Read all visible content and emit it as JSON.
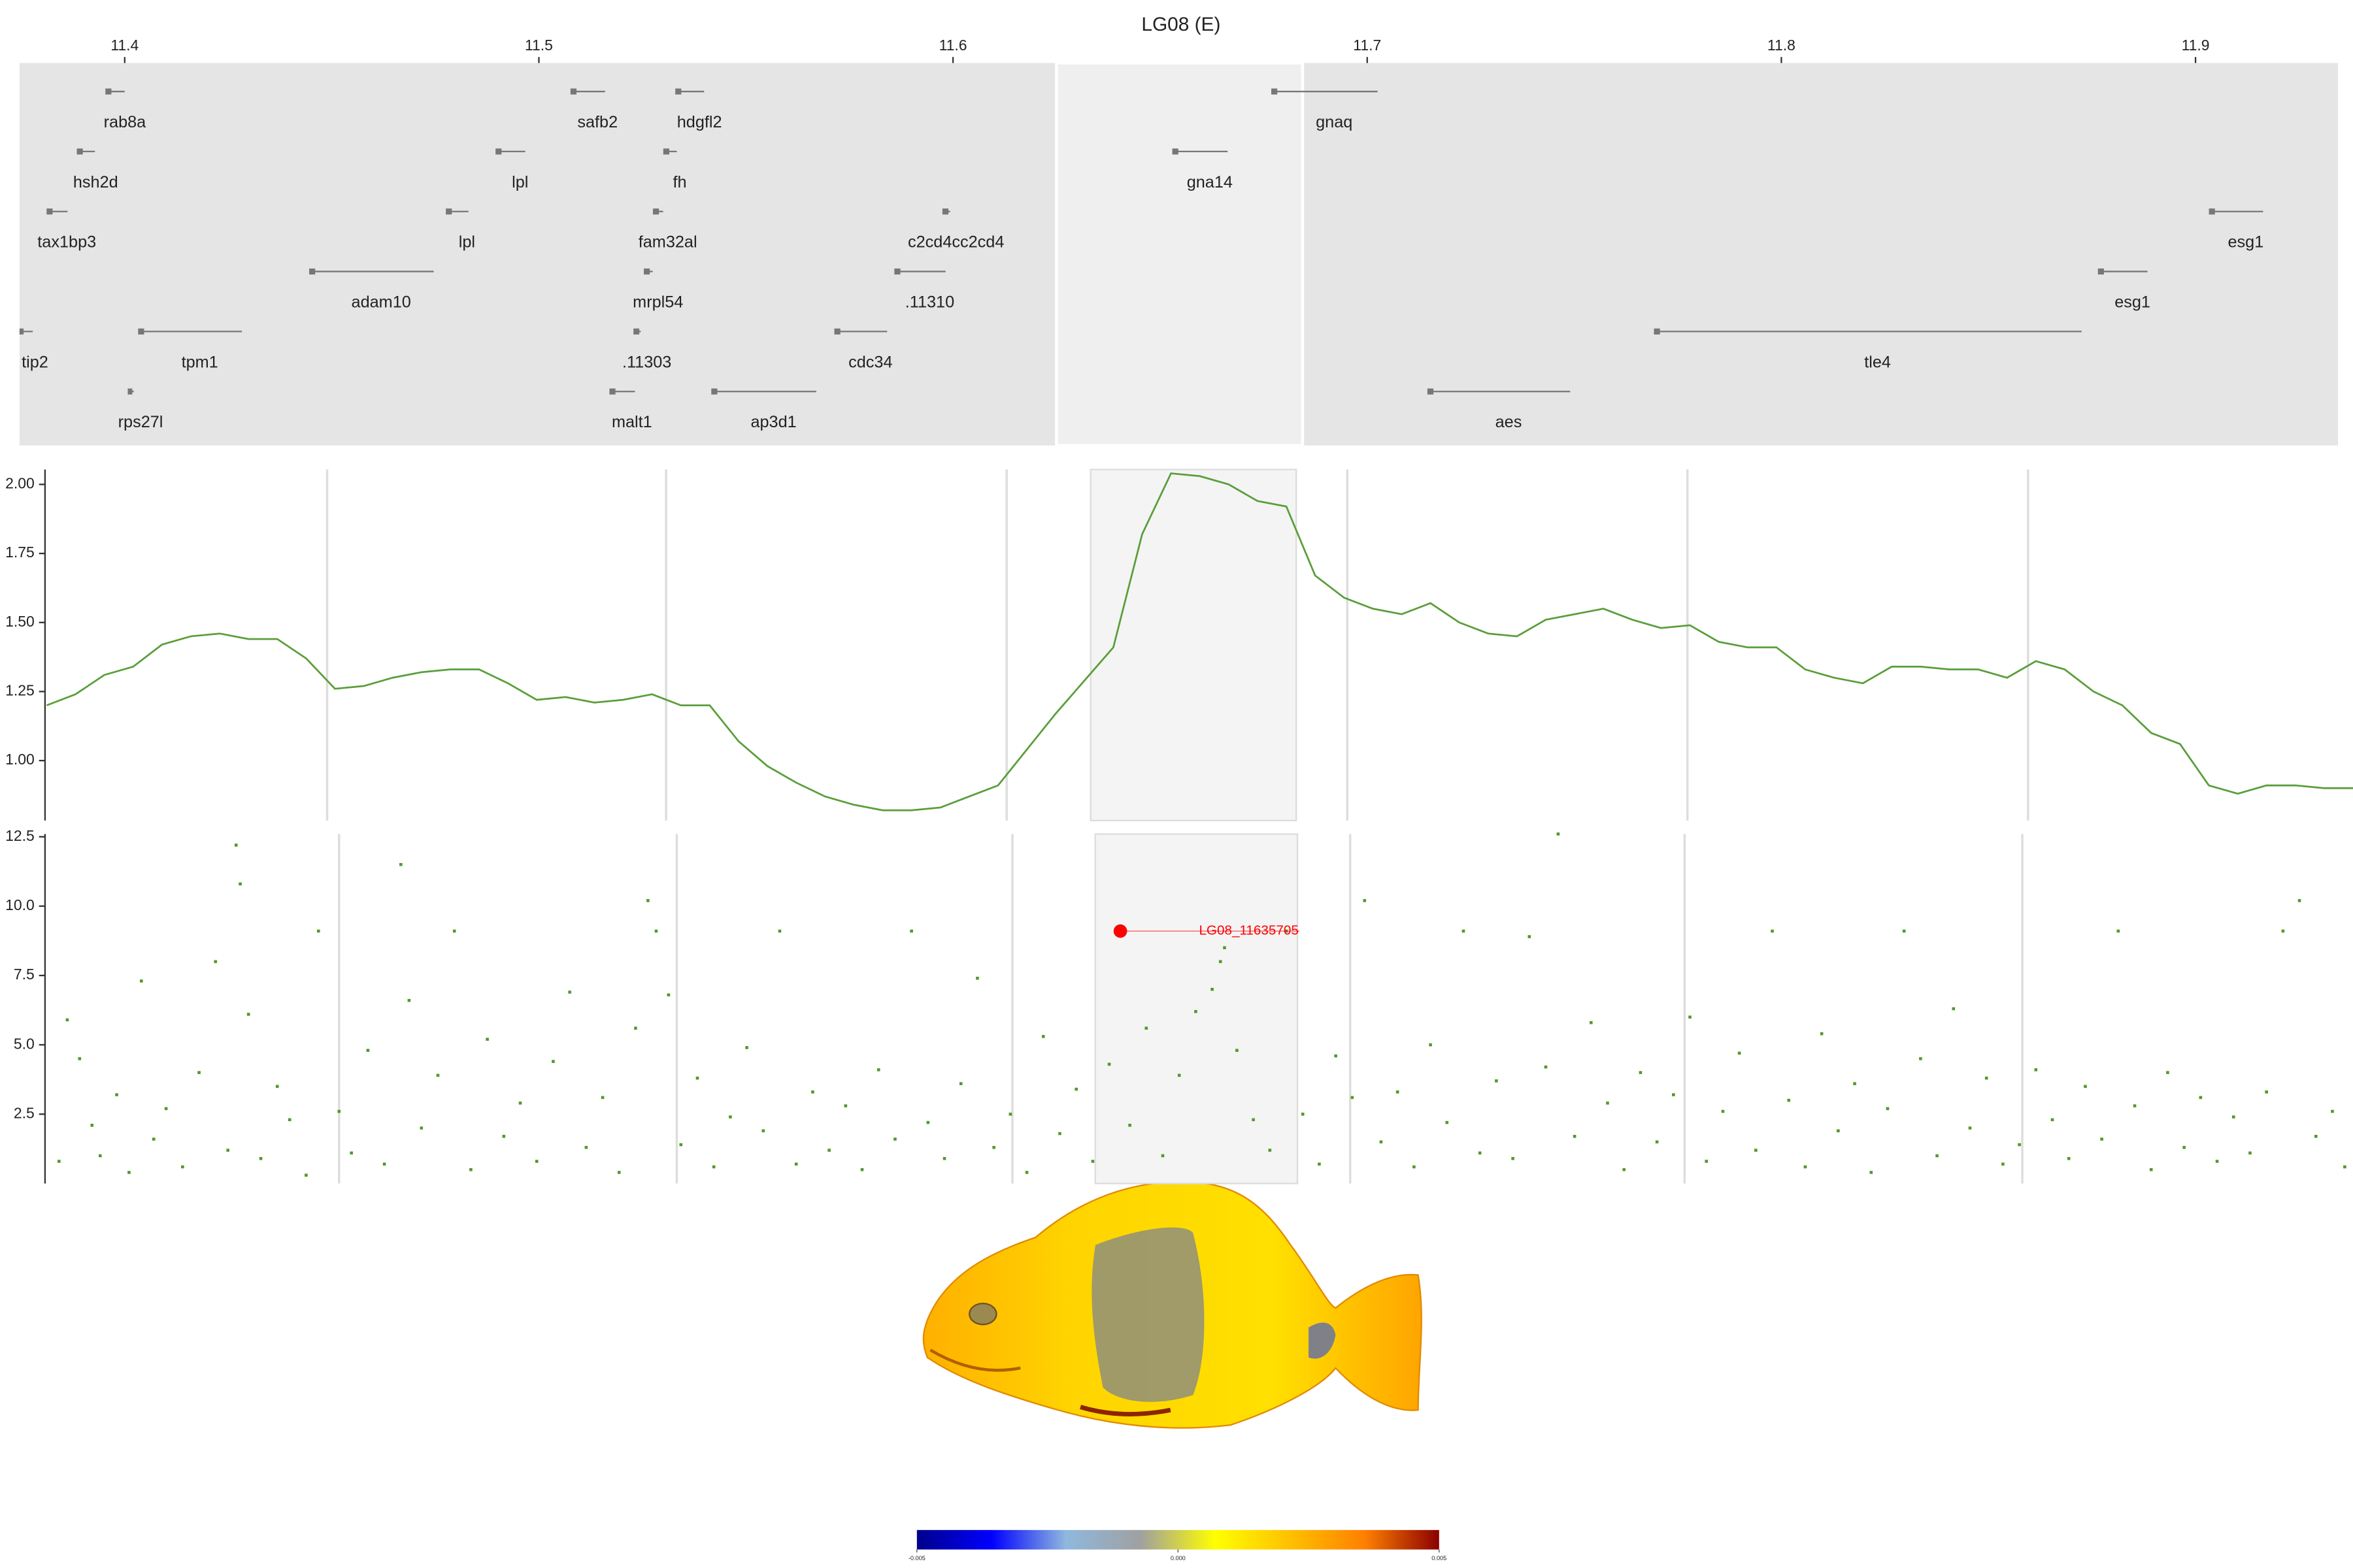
{
  "chart_data": [
    {
      "type": "gene-track",
      "title": "LG08 (E)",
      "xlim": [
        11.3746,
        11.9344
      ],
      "xticks": [
        11.4,
        11.5,
        11.6,
        11.7,
        11.8,
        11.9
      ],
      "highlight": [
        11.625,
        11.6844
      ],
      "color": "#777777",
      "rows": [
        [
          {
            "name": "rab8a",
            "start": 11.3957,
            "end": 11.4
          },
          {
            "name": "safb2",
            "start": 11.508,
            "end": 11.516
          },
          {
            "name": "hdgfl2",
            "start": 11.5333,
            "end": 11.5399
          },
          {
            "name": "gnaq",
            "start": 11.6772,
            "end": 11.7025
          }
        ],
        [
          {
            "name": "hsh2d",
            "start": 11.3888,
            "end": 11.3928
          },
          {
            "name": "lpl",
            "start": 11.4899,
            "end": 11.4967
          },
          {
            "name": "fh",
            "start": 11.5304,
            "end": 11.5333
          },
          {
            "name": "gna14",
            "start": 11.6533,
            "end": 11.6663
          }
        ],
        [
          {
            "name": "tax1bp3",
            "start": 11.3815,
            "end": 11.3862
          },
          {
            "name": "lpl",
            "start": 11.4779,
            "end": 11.483
          },
          {
            "name": "fam32al",
            "start": 11.5279,
            "end": 11.53
          },
          {
            "name": "c2cd4cc2cd4",
            "start": 11.5978,
            "end": 11.5993
          },
          {
            "name": "esg1",
            "start": 11.9036,
            "end": 11.9163
          }
        ],
        [
          {
            "name": "adam10",
            "start": 11.4449,
            "end": 11.4746
          },
          {
            "name": "mrpl54",
            "start": 11.5257,
            "end": 11.5275
          },
          {
            "name": ".11310",
            "start": 11.5862,
            "end": 11.5982
          },
          {
            "name": "esg1",
            "start": 11.8768,
            "end": 11.8884
          }
        ],
        [
          {
            "name": "tip2",
            "start": 11.3745,
            "end": 11.3778
          },
          {
            "name": "tpm1",
            "start": 11.4036,
            "end": 11.4283
          },
          {
            "name": ".11303",
            "start": 11.5232,
            "end": 11.5246
          },
          {
            "name": "cdc34",
            "start": 11.5717,
            "end": 11.5841
          },
          {
            "name": "tle4",
            "start": 11.7696,
            "end": 11.8725
          }
        ],
        [
          {
            "name": "rps27l",
            "start": 11.4011,
            "end": 11.4022
          },
          {
            "name": "malt1",
            "start": 11.5174,
            "end": 11.5232
          },
          {
            "name": "ap3d1",
            "start": 11.542,
            "end": 11.567
          },
          {
            "name": "aes",
            "start": 11.7149,
            "end": 11.749
          }
        ]
      ]
    },
    {
      "type": "line",
      "color": "#5a9e3a",
      "xlim": [
        11.3746,
        11.935
      ],
      "ylim": [
        0.783,
        2.054
      ],
      "yticks": [
        {
          "value": 1,
          "label": "1.00"
        },
        {
          "value": 1.25,
          "label": "1.25"
        },
        {
          "value": 1.5,
          "label": "1.50"
        },
        {
          "value": 1.75,
          "label": "1.75"
        },
        {
          "value": 2,
          "label": "2.00"
        }
      ],
      "xgrid": [
        11.4431,
        11.5254,
        11.6081,
        11.6908,
        11.7734,
        11.8561
      ],
      "highlight": [
        11.6285,
        11.6784
      ],
      "x": [
        11.375,
        11.382,
        11.389,
        11.396,
        11.403,
        11.41,
        11.417,
        11.424,
        11.431,
        11.438,
        11.445,
        11.452,
        11.459,
        11.466,
        11.473,
        11.48,
        11.487,
        11.494,
        11.501,
        11.508,
        11.515,
        11.522,
        11.529,
        11.536,
        11.543,
        11.55,
        11.557,
        11.564,
        11.571,
        11.578,
        11.585,
        11.592,
        11.599,
        11.606,
        11.613,
        11.62,
        11.627,
        11.634,
        11.641,
        11.648,
        11.655,
        11.662,
        11.669,
        11.676,
        11.683,
        11.69,
        11.697,
        11.704,
        11.711,
        11.718,
        11.725,
        11.732,
        11.739,
        11.746,
        11.753,
        11.76,
        11.767,
        11.774,
        11.781,
        11.788,
        11.795,
        11.802,
        11.809,
        11.816,
        11.823,
        11.83,
        11.837,
        11.844,
        11.851,
        11.858,
        11.865,
        11.872,
        11.879,
        11.886,
        11.893,
        11.9,
        11.907,
        11.914,
        11.921,
        11.928,
        11.935
      ],
      "values": [
        1.2,
        1.24,
        1.31,
        1.34,
        1.42,
        1.45,
        1.46,
        1.44,
        1.44,
        1.37,
        1.26,
        1.27,
        1.3,
        1.32,
        1.33,
        1.33,
        1.28,
        1.22,
        1.23,
        1.21,
        1.22,
        1.24,
        1.2,
        1.2,
        1.07,
        0.98,
        0.92,
        0.87,
        0.84,
        0.82,
        0.82,
        0.83,
        0.87,
        0.91,
        1.04,
        1.17,
        1.29,
        1.41,
        1.82,
        2.04,
        2.03,
        2,
        1.94,
        1.92,
        1.67,
        1.59,
        1.55,
        1.53,
        1.57,
        1.5,
        1.46,
        1.45,
        1.51,
        1.53,
        1.55,
        1.51,
        1.48,
        1.49,
        1.43,
        1.41,
        1.41,
        1.33,
        1.3,
        1.28,
        1.34,
        1.34,
        1.33,
        1.33,
        1.3,
        1.36,
        1.33,
        1.25,
        1.2,
        1.1,
        1.06,
        0.91,
        0.88,
        0.91,
        0.91,
        0.9,
        0.9
      ]
    },
    {
      "type": "scatter",
      "color": "#4f9a2c",
      "xlim": [
        11.3746,
        11.935
      ],
      "ylim": [
        0,
        12.6
      ],
      "yticks": [
        {
          "value": 2.5,
          "label": "2.5"
        },
        {
          "value": 5,
          "label": "5.0"
        },
        {
          "value": 7.5,
          "label": "7.5"
        },
        {
          "value": 10,
          "label": "10.0"
        },
        {
          "value": 12.5,
          "label": "12.5"
        }
      ],
      "xgrid": [
        11.446,
        11.528,
        11.6095,
        11.6915,
        11.7727,
        11.8547
      ],
      "highlight": [
        11.6296,
        11.6787
      ],
      "x": [
        11.378,
        11.38,
        11.383,
        11.386,
        11.388,
        11.392,
        11.395,
        11.398,
        11.401,
        11.404,
        11.408,
        11.412,
        11.416,
        11.419,
        11.421,
        11.422,
        11.424,
        11.427,
        11.431,
        11.434,
        11.438,
        11.441,
        11.446,
        11.449,
        11.453,
        11.457,
        11.461,
        11.463,
        11.466,
        11.47,
        11.474,
        11.478,
        11.482,
        11.486,
        11.49,
        11.494,
        11.498,
        11.502,
        11.506,
        11.51,
        11.514,
        11.518,
        11.521,
        11.523,
        11.526,
        11.529,
        11.533,
        11.537,
        11.541,
        11.545,
        11.549,
        11.553,
        11.557,
        11.561,
        11.565,
        11.569,
        11.573,
        11.577,
        11.581,
        11.585,
        11.589,
        11.593,
        11.597,
        11.601,
        11.605,
        11.609,
        11.613,
        11.617,
        11.621,
        11.625,
        11.629,
        11.633,
        11.638,
        11.642,
        11.646,
        11.65,
        11.654,
        11.658,
        11.66,
        11.661,
        11.664,
        11.668,
        11.672,
        11.676,
        11.68,
        11.684,
        11.688,
        11.692,
        11.695,
        11.699,
        11.703,
        11.707,
        11.711,
        11.715,
        11.719,
        11.723,
        11.727,
        11.731,
        11.735,
        11.739,
        11.742,
        11.746,
        11.75,
        11.754,
        11.758,
        11.762,
        11.766,
        11.77,
        11.774,
        11.778,
        11.782,
        11.786,
        11.79,
        11.794,
        11.798,
        11.802,
        11.806,
        11.81,
        11.814,
        11.818,
        11.822,
        11.826,
        11.83,
        11.834,
        11.838,
        11.842,
        11.846,
        11.85,
        11.854,
        11.858,
        11.862,
        11.866,
        11.87,
        11.874,
        11.878,
        11.882,
        11.886,
        11.89,
        11.894,
        11.898,
        11.902,
        11.906,
        11.91,
        11.914,
        11.918,
        11.922,
        11.926,
        11.93,
        11.933
      ],
      "y": [
        0.8,
        5.9,
        4.5,
        2.1,
        1,
        3.2,
        0.4,
        7.3,
        1.6,
        2.7,
        0.6,
        4,
        8,
        1.2,
        12.2,
        10.8,
        6.1,
        0.9,
        3.5,
        2.3,
        0.3,
        9.1,
        2.6,
        1.1,
        4.8,
        0.7,
        11.5,
        6.6,
        2,
        3.9,
        9.1,
        0.5,
        5.2,
        1.7,
        2.9,
        0.8,
        4.4,
        6.9,
        1.3,
        3.1,
        0.4,
        5.6,
        10.2,
        9.1,
        6.8,
        1.4,
        3.8,
        0.6,
        2.4,
        4.9,
        1.9,
        9.1,
        0.7,
        3.3,
        1.2,
        2.8,
        0.5,
        4.1,
        1.6,
        9.1,
        2.2,
        0.9,
        3.6,
        7.4,
        1.3,
        2.5,
        0.4,
        5.3,
        1.8,
        3.4,
        0.8,
        4.3,
        2.1,
        5.6,
        1,
        3.9,
        6.2,
        7,
        8,
        8.5,
        4.8,
        2.3,
        1.2,
        9.1,
        2.5,
        0.7,
        4.6,
        3.1,
        10.2,
        1.5,
        3.3,
        0.6,
        5,
        2.2,
        9.1,
        1.1,
        3.7,
        0.9,
        8.9,
        4.2,
        12.6,
        1.7,
        5.8,
        2.9,
        0.5,
        4,
        1.5,
        3.2,
        6,
        0.8,
        2.6,
        4.7,
        1.2,
        9.1,
        3,
        0.6,
        5.4,
        1.9,
        3.6,
        0.4,
        2.7,
        9.1,
        4.5,
        1,
        6.3,
        2,
        3.8,
        0.7,
        1.4,
        4.1,
        2.3,
        0.9,
        3.5,
        1.6,
        9.1,
        2.8,
        0.5,
        4,
        1.3,
        3.1,
        0.8,
        2.4,
        1.1,
        3.3,
        9.1,
        10.2,
        1.7,
        2.6,
        0.6
      ],
      "annotation": {
        "x": 11.6357,
        "y": 9.1,
        "label": "LG08_11635705",
        "color": "#ff0000"
      }
    },
    {
      "type": "colorbar",
      "lim": [
        -0.005,
        0.005
      ],
      "ticks": [
        {
          "value": -0.005,
          "label": "-0.005"
        },
        {
          "value": 0,
          "label": "0.000"
        },
        {
          "value": 0.005,
          "label": "0.005"
        }
      ],
      "colors": [
        "#00008b",
        "#0000ff",
        "#8fb8de",
        "#a0a0a0",
        "#ffff00",
        "#ffc000",
        "#ff8000",
        "#8b0000"
      ]
    }
  ]
}
